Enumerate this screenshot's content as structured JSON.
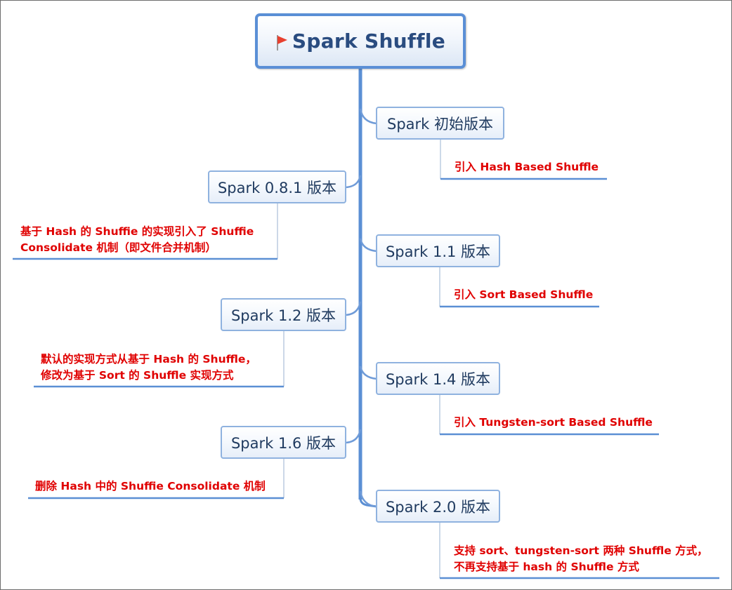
{
  "root": {
    "title": "Spark Shuffle"
  },
  "nodes": [
    {
      "id": "initial",
      "label": "Spark 初始版本",
      "note_lines": [
        "引入 Hash Based Shuffle"
      ]
    },
    {
      "id": "v081",
      "label": "Spark 0.8.1 版本",
      "note_lines": [
        "基于 Hash 的 Shuffie 的实现引入了 Shuffie",
        "Consolidate 机制（即文件合并机制）"
      ]
    },
    {
      "id": "v11",
      "label": "Spark 1.1 版本",
      "note_lines": [
        "引入 Sort Based Shuffle"
      ]
    },
    {
      "id": "v12",
      "label": "Spark 1.2 版本",
      "note_lines": [
        "默认的实现方式从基于 Hash 的 Shuffle，",
        "修改为基于 Sort 的 Shuffle 实现方式"
      ]
    },
    {
      "id": "v14",
      "label": "Spark 1.4 版本",
      "note_lines": [
        "引入 Tungsten-sort Based Shuffle"
      ]
    },
    {
      "id": "v16",
      "label": "Spark 1.6 版本",
      "note_lines": [
        "删除 Hash 中的 Shuffie Consolidate 机制"
      ]
    },
    {
      "id": "v20",
      "label": "Spark 2.0 版本",
      "note_lines": [
        "支持 sort、tungsten-sort 两种 Shuffle 方式，",
        "不再支持基于 hash 的  Shuffle 方式"
      ]
    }
  ],
  "colors": {
    "trunk": "#5b8fd4",
    "branch": "#6f9bd8",
    "note_underline": "#5b8fd4",
    "note_connector": "#a9bfd9",
    "note_text": "#e00000",
    "node_text": "#1f3a5f",
    "root_text": "#2a4c80",
    "flag": "#e8402f"
  }
}
